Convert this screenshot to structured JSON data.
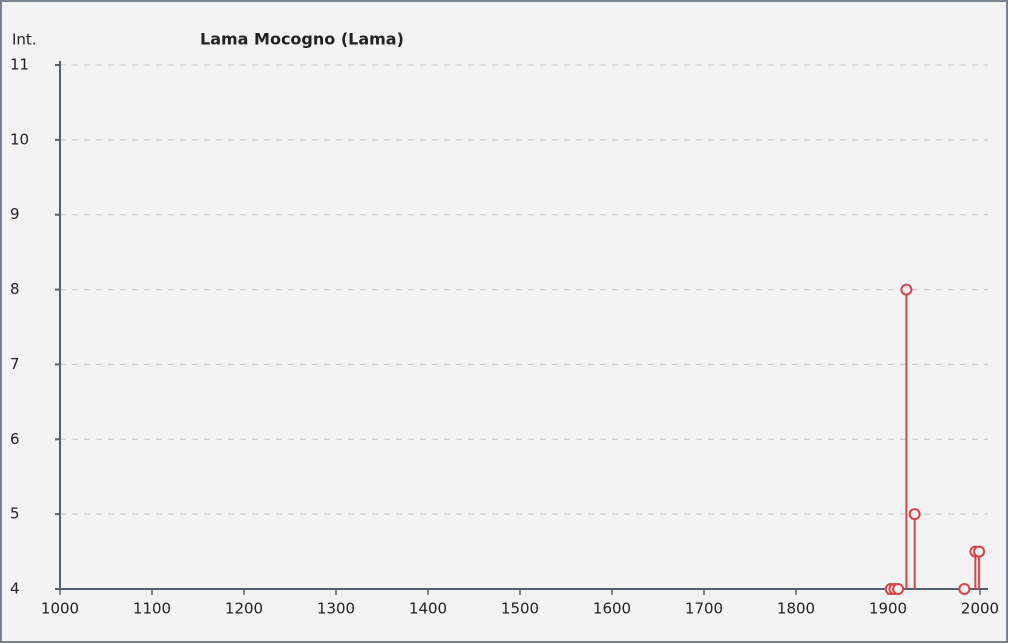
{
  "chart_data": {
    "type": "stem",
    "title": "Lama Mocogno (Lama)",
    "y_label": "Int.",
    "x": [
      1903,
      1907,
      1911,
      1920,
      1929,
      1983,
      1995,
      1999
    ],
    "series": [
      {
        "color": "#d9434a",
        "values": [
          4,
          4,
          4,
          8,
          5,
          4,
          4.5,
          4.5
        ]
      }
    ],
    "xlim": [
      1000,
      2000
    ],
    "xticks": [
      1000,
      1100,
      1200,
      1300,
      1400,
      1500,
      1600,
      1700,
      1800,
      1900,
      2000
    ],
    "ylim": [
      4,
      11
    ],
    "yticks": [
      4,
      5,
      6,
      7,
      8,
      9,
      10,
      11
    ],
    "grid": true
  }
}
